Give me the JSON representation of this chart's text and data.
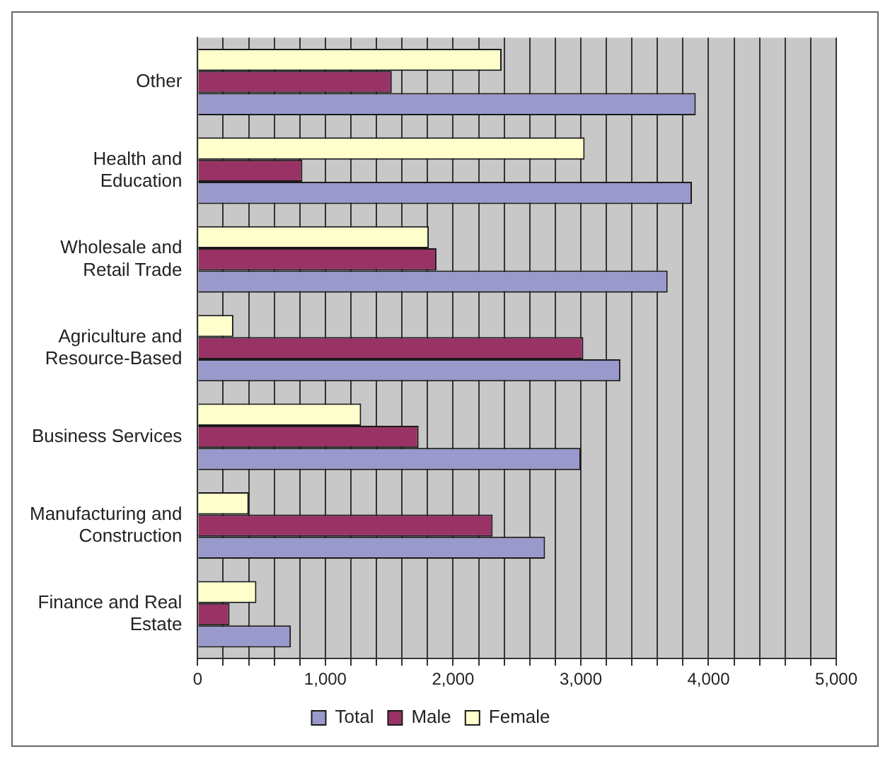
{
  "chart_data": {
    "type": "bar",
    "orientation": "horizontal",
    "categories": [
      "Other",
      "Health and Education",
      "Wholesale and Retail Trade",
      "Agriculture and Resource-Based",
      "Business Services",
      "Manufacturing and Construction",
      "Finance and Real Estate"
    ],
    "series": [
      {
        "name": "Total",
        "color": "#9999cc",
        "values": [
          3900,
          3870,
          3680,
          3310,
          3000,
          2720,
          730
        ]
      },
      {
        "name": "Male",
        "color": "#993366",
        "values": [
          1520,
          820,
          1870,
          3020,
          1730,
          2310,
          250
        ]
      },
      {
        "name": "Female",
        "color": "#ffffcc",
        "values": [
          2380,
          3030,
          1810,
          280,
          1280,
          400,
          460
        ]
      }
    ],
    "xlim": [
      0,
      5000
    ],
    "xticks": [
      0,
      {
        "value": 200,
        "label": null
      },
      {
        "value": 400,
        "label": null
      },
      {
        "value": 600,
        "label": null
      },
      {
        "value": 800,
        "label": null
      },
      {
        "value": 1000,
        "label": "1,000"
      },
      {
        "value": 1200,
        "label": null
      },
      {
        "value": 1400,
        "label": null
      },
      {
        "value": 1600,
        "label": null
      },
      {
        "value": 1800,
        "label": null
      },
      {
        "value": 2000,
        "label": "2,000"
      },
      {
        "value": 2200,
        "label": null
      },
      {
        "value": 2400,
        "label": null
      },
      {
        "value": 2600,
        "label": null
      },
      {
        "value": 2800,
        "label": null
      },
      {
        "value": 3000,
        "label": "3,000"
      },
      {
        "value": 3200,
        "label": null
      },
      {
        "value": 3400,
        "label": null
      },
      {
        "value": 3600,
        "label": null
      },
      {
        "value": 3800,
        "label": null
      },
      {
        "value": 4000,
        "label": "4,000"
      },
      {
        "value": 4200,
        "label": null
      },
      {
        "value": 4400,
        "label": null
      },
      {
        "value": 4600,
        "label": null
      },
      {
        "value": 4800,
        "label": null
      },
      {
        "value": 5000,
        "label": "5,000"
      }
    ],
    "grid": "x",
    "legend": "bottom"
  }
}
